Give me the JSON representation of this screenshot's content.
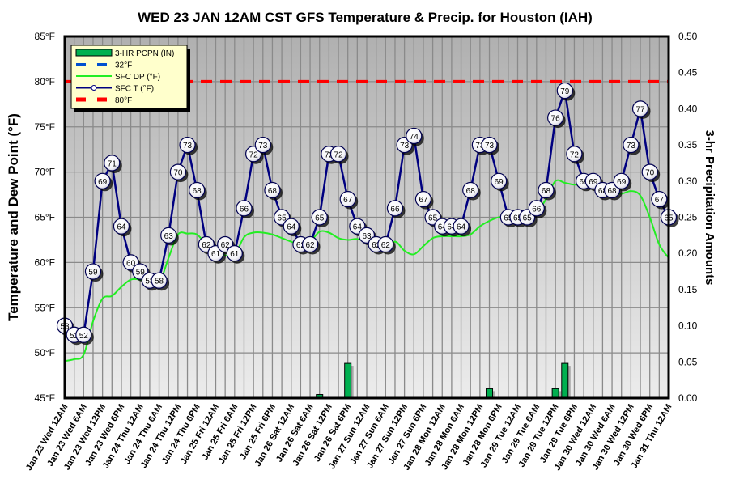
{
  "chart_data": {
    "type": "line",
    "title": "WED 23 JAN 12AM CST GFS Temperature & Precip. for Houston (IAH)",
    "ylabel": "Temperature and Dew Point (°F)",
    "y2label": "3-hr Precipitation Amounts",
    "ylim": [
      45,
      85
    ],
    "y2lim": [
      0,
      0.5
    ],
    "yticks": [
      "45°F",
      "50°F",
      "55°F",
      "60°F",
      "65°F",
      "70°F",
      "75°F",
      "80°F",
      "85°F"
    ],
    "y2ticks": [
      "0.00",
      "0.05",
      "0.10",
      "0.15",
      "0.20",
      "0.25",
      "0.30",
      "0.35",
      "0.40",
      "0.45",
      "0.50"
    ],
    "grid": true,
    "legend_position": "top-left",
    "legend": [
      {
        "name": "3-HR PCPN  (IN)",
        "color": "#00b050",
        "style": "bar"
      },
      {
        "name": "32°F",
        "color": "#0050d0",
        "style": "dashed"
      },
      {
        "name": "SFC DP (°F)",
        "color": "#22ee22",
        "style": "line"
      },
      {
        "name": "SFC T (°F)",
        "color": "#000080",
        "style": "line-marker"
      },
      {
        "name": "80°F",
        "color": "#ff0000",
        "style": "dashed"
      }
    ],
    "xlabels": [
      "Jan 23 Wed 12AM",
      "Jan 23 Wed 6AM",
      "Jan 23 Wed 12PM",
      "Jan 23 Wed 6PM",
      "Jan 24 Thu 12AM",
      "Jan 24 Thu 6AM",
      "Jan 24 Thu 12PM",
      "Jan 24 Thu 6PM",
      "Jan 25 Fri 12AM",
      "Jan 25 Fri 6AM",
      "Jan 25 Fri 12PM",
      "Jan 25 Fri 6PM",
      "Jan 26 Sat 12AM",
      "Jan 26 Sat 6AM",
      "Jan 26 Sat 12PM",
      "Jan 26 Sat 6PM",
      "Jan 27 Sun 12AM",
      "Jan 27 Sun 6AM",
      "Jan 27 Sun 12PM",
      "Jan 27 Sun 6PM",
      "Jan 28 Mon 12AM",
      "Jan 28 Mon 6AM",
      "Jan 28 Mon 12PM",
      "Jan 28 Mon 6PM",
      "Jan 29 Tue 12AM",
      "Jan 29 Tue 6AM",
      "Jan 29 Tue 12PM",
      "Jan 29 Tue 6PM",
      "Jan 30 Wed 12AM",
      "Jan 30 Wed 6AM",
      "Jan 30 Wed 12PM",
      "Jan 30 Wed 6PM",
      "Jan 31 Thu 12AM"
    ],
    "x_step_hours": 3,
    "series": [
      {
        "name": "SFC T (°F)",
        "values": [
          53,
          52,
          52,
          59,
          69,
          71,
          64,
          60,
          59,
          58,
          58,
          63,
          70,
          73,
          68,
          62,
          61,
          62,
          61,
          66,
          72,
          73,
          68,
          65,
          64,
          62,
          62,
          65,
          72,
          72,
          67,
          64,
          63,
          62,
          62,
          66,
          73,
          74,
          67,
          65,
          64,
          64,
          64,
          68,
          73,
          73,
          69,
          65,
          65,
          65,
          66,
          68,
          76,
          79,
          72,
          69,
          69,
          68,
          68,
          69,
          73,
          77,
          70,
          67,
          65
        ]
      },
      {
        "name": "SFC DP (°F)",
        "values": [
          49.1,
          49.3,
          49.8,
          53.5,
          56.0,
          56.3,
          57.3,
          58.1,
          58.1,
          57.8,
          57.7,
          60.5,
          63.1,
          63.2,
          63.1,
          62.0,
          61.2,
          60.8,
          60.8,
          62.8,
          63.3,
          63.3,
          63.1,
          62.7,
          62.3,
          62.0,
          62.3,
          63.4,
          63.3,
          62.7,
          62.5,
          62.6,
          62.2,
          61.6,
          61.4,
          62.3,
          61.3,
          60.9,
          61.8,
          62.7,
          62.9,
          62.9,
          62.9,
          63.1,
          64.0,
          64.6,
          65.0,
          65.0,
          64.8,
          64.8,
          65.5,
          67.0,
          69.0,
          68.8,
          68.6,
          68.7,
          68.7,
          68.4,
          67.8,
          67.6,
          67.9,
          67.4,
          65.0,
          62.0,
          60.5
        ]
      },
      {
        "name": "3-HR PCPN  (IN)",
        "points": [
          {
            "index": 27,
            "value": 0.005
          },
          {
            "index": 30,
            "value": 0.048
          },
          {
            "index": 45,
            "value": 0.013
          },
          {
            "index": 52,
            "value": 0.013
          },
          {
            "index": 53,
            "value": 0.048
          }
        ]
      },
      {
        "name": "80°F",
        "values": [
          80
        ]
      },
      {
        "name": "32°F",
        "values": [
          32
        ]
      }
    ]
  }
}
